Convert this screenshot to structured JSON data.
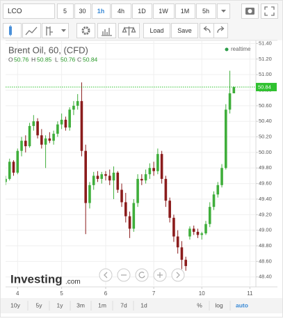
{
  "toolbar": {
    "symbol": "LCO",
    "intervals": [
      "5",
      "30",
      "1h",
      "4h",
      "1D",
      "1W",
      "1M",
      "5h"
    ],
    "active_interval": 2,
    "load": "Load",
    "save": "Save"
  },
  "chart_data": {
    "type": "candlestick",
    "title": "Brent Oil, 60, (CFD)",
    "ohlc_labels": [
      "O",
      "H",
      "L",
      "C"
    ],
    "ohlc_values": [
      50.76,
      50.85,
      50.76,
      50.84
    ],
    "realtime": "realtime",
    "watermark": [
      "Investing",
      ".com"
    ],
    "x": [
      0,
      2,
      4,
      6,
      8,
      10,
      12,
      14,
      16,
      18,
      20,
      22,
      24,
      26,
      28,
      30,
      32,
      34,
      36,
      38,
      40,
      42,
      44,
      46,
      48,
      50,
      52,
      54,
      56,
      58,
      60,
      62,
      64,
      66,
      68,
      70,
      72,
      74,
      76,
      78,
      80,
      82,
      84,
      86,
      88,
      90,
      92,
      94,
      96,
      98,
      100,
      102,
      104,
      106,
      108,
      110,
      112,
      114
    ],
    "open": [
      49.62,
      49.66,
      49.88,
      49.74,
      50.02,
      50.15,
      50.08,
      50.34,
      50.4,
      50.22,
      50.1,
      50.18,
      50.15,
      50.24,
      50.36,
      50.42,
      50.32,
      50.55,
      50.6,
      50.66,
      50.02,
      49.35,
      49.58,
      49.7,
      49.66,
      49.72,
      49.7,
      49.64,
      49.74,
      49.52,
      49.36,
      49.18,
      49.02,
      49.35,
      49.66,
      49.64,
      49.72,
      49.8,
      49.76,
      49.98,
      49.66,
      49.38,
      49.16,
      48.92,
      48.78,
      48.62,
      48.92,
      49.02,
      48.98,
      48.94,
      48.96,
      49.08,
      49.3,
      49.46,
      49.58,
      49.8,
      50.55,
      50.76
    ],
    "high": [
      49.7,
      49.92,
      49.9,
      50.05,
      50.2,
      50.22,
      50.38,
      50.48,
      50.44,
      50.3,
      50.22,
      50.26,
      50.28,
      50.4,
      50.5,
      50.46,
      50.58,
      50.66,
      50.75,
      50.9,
      50.1,
      49.62,
      49.75,
      49.76,
      49.75,
      49.76,
      49.78,
      49.82,
      49.76,
      49.6,
      49.48,
      49.24,
      49.4,
      49.72,
      49.72,
      49.78,
      49.86,
      49.88,
      50.05,
      50.02,
      49.7,
      49.42,
      49.2,
      49.0,
      48.86,
      48.66,
      49.05,
      49.06,
      49.02,
      48.98,
      49.12,
      49.36,
      49.5,
      49.62,
      49.85,
      50.62,
      51.05,
      50.85
    ],
    "low": [
      49.58,
      49.64,
      49.7,
      49.72,
      49.95,
      50.0,
      50.06,
      50.28,
      50.18,
      50.05,
      49.8,
      50.12,
      50.1,
      50.2,
      50.3,
      50.28,
      50.28,
      50.48,
      50.55,
      49.95,
      48.95,
      49.28,
      49.52,
      49.62,
      49.6,
      49.64,
      49.58,
      49.4,
      49.48,
      49.3,
      49.1,
      48.9,
      48.98,
      49.3,
      49.58,
      49.6,
      49.66,
      49.7,
      49.72,
      49.6,
      49.3,
      49.1,
      48.85,
      48.7,
      48.5,
      48.48,
      48.88,
      48.94,
      48.9,
      48.88,
      48.94,
      49.04,
      49.26,
      49.42,
      49.55,
      49.78,
      50.5,
      50.76
    ],
    "close": [
      49.66,
      49.88,
      49.74,
      50.02,
      50.15,
      50.08,
      50.34,
      50.4,
      50.22,
      50.1,
      50.18,
      50.15,
      50.24,
      50.36,
      50.42,
      50.32,
      50.55,
      50.6,
      50.66,
      50.02,
      49.35,
      49.58,
      49.7,
      49.66,
      49.72,
      49.7,
      49.64,
      49.74,
      49.52,
      49.36,
      49.18,
      49.02,
      49.35,
      49.66,
      49.64,
      49.72,
      49.8,
      49.76,
      49.98,
      49.66,
      49.38,
      49.16,
      48.92,
      48.78,
      48.62,
      48.54,
      49.02,
      48.98,
      48.94,
      48.96,
      49.08,
      49.3,
      49.46,
      49.58,
      49.8,
      50.55,
      50.76,
      50.84
    ],
    "up_color": "#3fae3b",
    "down_color": "#8b1c1c",
    "price_line_color": "#2fc12f",
    "last_price": 50.84,
    "xlim": [
      0,
      125
    ],
    "xticks": [
      {
        "value": 6,
        "label": "4"
      },
      {
        "value": 28,
        "label": "5"
      },
      {
        "value": 50,
        "label": "6"
      },
      {
        "value": 74,
        "label": "7"
      },
      {
        "value": 98,
        "label": "10"
      },
      {
        "value": 122,
        "label": "11"
      }
    ],
    "ylim": [
      48.29,
      51.44
    ],
    "yticks": [
      {
        "value": 48.4,
        "label": "48.40"
      },
      {
        "value": 48.6,
        "label": "48.60"
      },
      {
        "value": 48.8,
        "label": "48.80"
      },
      {
        "value": 49.0,
        "label": "49.00"
      },
      {
        "value": 49.2,
        "label": "49.20"
      },
      {
        "value": 49.4,
        "label": "49.40"
      },
      {
        "value": 49.6,
        "label": "49.60"
      },
      {
        "value": 49.8,
        "label": "49.80"
      },
      {
        "value": 50.0,
        "label": "50.00"
      },
      {
        "value": 50.2,
        "label": "50.20"
      },
      {
        "value": 50.4,
        "label": "50.40"
      },
      {
        "value": 50.6,
        "label": "50.60"
      },
      {
        "value": 50.8,
        "label": "50.80"
      },
      {
        "value": 51.0,
        "label": "51.00"
      },
      {
        "value": 51.2,
        "label": "51.20"
      },
      {
        "value": 51.4,
        "label": "51.40"
      }
    ],
    "grid": true
  },
  "footer": {
    "ranges": [
      "10y",
      "5y",
      "1y",
      "3m",
      "1m",
      "7d",
      "1d"
    ],
    "scales": [
      "%",
      "log",
      "auto"
    ],
    "active_scale": 2
  }
}
